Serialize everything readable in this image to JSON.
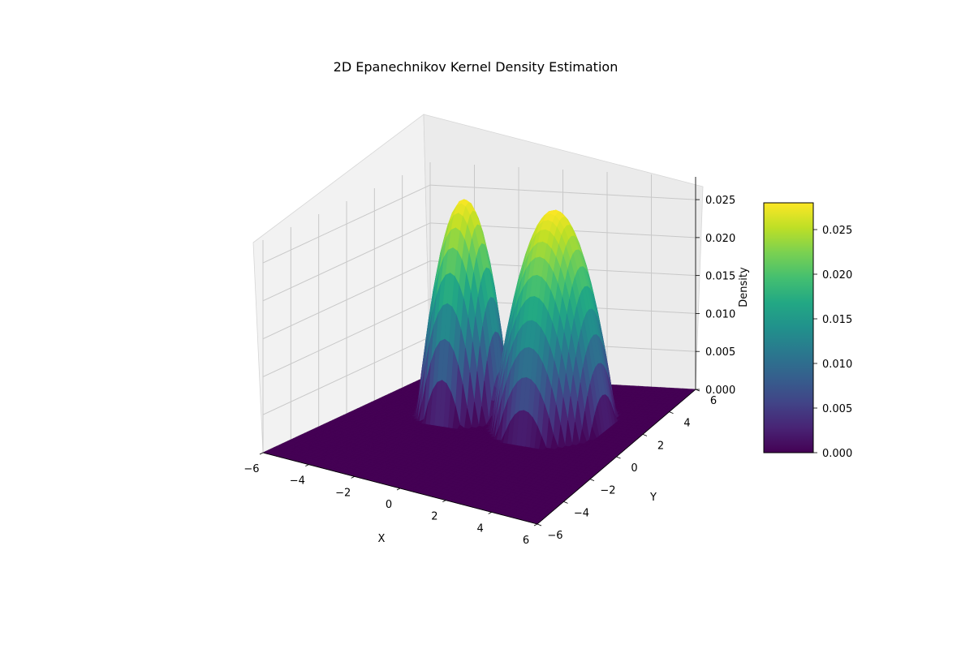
{
  "chart_data": {
    "type": "surface3d",
    "title": "2D Epanechnikov Kernel Density Estimation",
    "xlabel": "X",
    "ylabel": "Y",
    "zlabel": "Density",
    "xlim": [
      -6,
      6
    ],
    "ylim": [
      -6,
      6
    ],
    "zlim": [
      0,
      0.028
    ],
    "x_ticks": [
      -6,
      -4,
      -2,
      0,
      2,
      4,
      6
    ],
    "y_ticks": [
      -6,
      -4,
      -2,
      0,
      2,
      4,
      6
    ],
    "z_ticks": [
      "0.000",
      "0.005",
      "0.010",
      "0.015",
      "0.020",
      "0.025"
    ],
    "z_tick_values": [
      0,
      0.005,
      0.01,
      0.015,
      0.02,
      0.025
    ],
    "colorbar_ticks": [
      "0.000",
      "0.005",
      "0.010",
      "0.015",
      "0.020",
      "0.025"
    ],
    "colormap": "viridis",
    "peaks": [
      {
        "x": -2,
        "y": 2,
        "peak_density": 0.028,
        "bandwidth": 1.8
      },
      {
        "x": 2,
        "y": 2,
        "peak_density": 0.028,
        "bandwidth": 2.4
      }
    ],
    "grid": true
  }
}
